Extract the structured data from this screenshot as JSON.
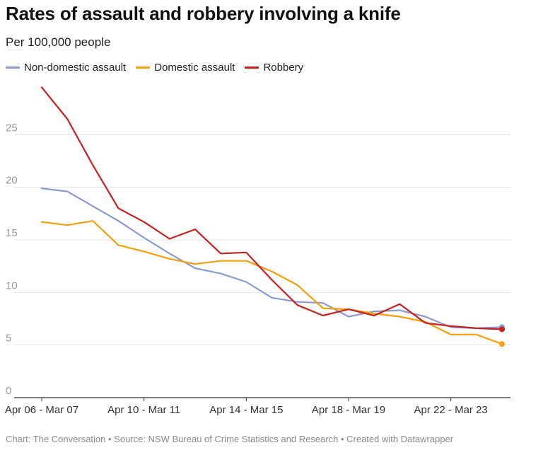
{
  "title": "Rates of assault and robbery involving a knife",
  "subtitle": "Per 100,000 people",
  "footer": {
    "text": "Chart: The Conversation • Source: NSW Bureau of Crime Statistics and Research • Created with Datawrapper"
  },
  "legend": [
    {
      "label": "Non-domestic assault",
      "color": "#8a99d1"
    },
    {
      "label": "Domestic assault",
      "color": "#f5a00a"
    },
    {
      "label": "Robbery",
      "color": "#c8201f"
    }
  ],
  "chart_data": {
    "type": "line",
    "title": "Rates of assault and robbery involving a knife",
    "subtitle": "Per 100,000 people",
    "xlabel": "",
    "ylabel": "",
    "x": [
      "Apr 06 - Mar 07",
      "Apr 07 - Mar 08",
      "Apr 08 - Mar 09",
      "Apr 09 - Mar 10",
      "Apr 10 - Mar 11",
      "Apr 11 - Mar 12",
      "Apr 12 - Mar 13",
      "Apr 13 - Mar 14",
      "Apr 14 - Mar 15",
      "Apr 15 - Mar 16",
      "Apr 16 - Mar 17",
      "Apr 17 - Mar 18",
      "Apr 18 - Mar 19",
      "Apr 19 - Mar 20",
      "Apr 20 - Mar 21",
      "Apr 21 - Mar 22",
      "Apr 22 - Mar 23",
      "Apr 23 - Mar 24",
      "Apr 24 - Mar 25"
    ],
    "x_tick_labels": [
      "Apr 06 - Mar 07",
      "Apr 10 - Mar 11",
      "Apr 14 - Mar 15",
      "Apr 18 - Mar 19",
      "Apr 22 - Mar 23"
    ],
    "x_tick_indices": [
      0,
      4,
      8,
      12,
      16
    ],
    "y_ticks": [
      0,
      5,
      10,
      15,
      20,
      25
    ],
    "y_tick_labels": [
      "0",
      "5",
      "10",
      "15",
      "20",
      "25"
    ],
    "ylim": [
      0,
      30
    ],
    "grid": true,
    "series": [
      {
        "name": "Non-domestic assault",
        "color": "#8a99d1",
        "values": [
          19.9,
          19.6,
          18.2,
          16.8,
          15.2,
          13.7,
          12.3,
          11.8,
          11.0,
          9.5,
          9.1,
          9.0,
          7.7,
          8.2,
          8.3,
          7.7,
          6.7,
          6.6,
          6.7
        ]
      },
      {
        "name": "Domestic assault",
        "color": "#f5a00a",
        "values": [
          16.7,
          16.4,
          16.8,
          14.5,
          13.9,
          13.2,
          12.7,
          13.0,
          13.0,
          12.0,
          10.7,
          8.5,
          8.4,
          8.0,
          7.7,
          7.2,
          6.0,
          6.0,
          5.1
        ]
      },
      {
        "name": "Robbery",
        "color": "#c8201f",
        "values": [
          29.5,
          26.5,
          22.1,
          18.0,
          16.7,
          15.1,
          16.0,
          13.7,
          13.8,
          11.2,
          8.8,
          7.8,
          8.4,
          7.8,
          8.9,
          7.1,
          6.8,
          6.6,
          6.5
        ]
      }
    ]
  }
}
